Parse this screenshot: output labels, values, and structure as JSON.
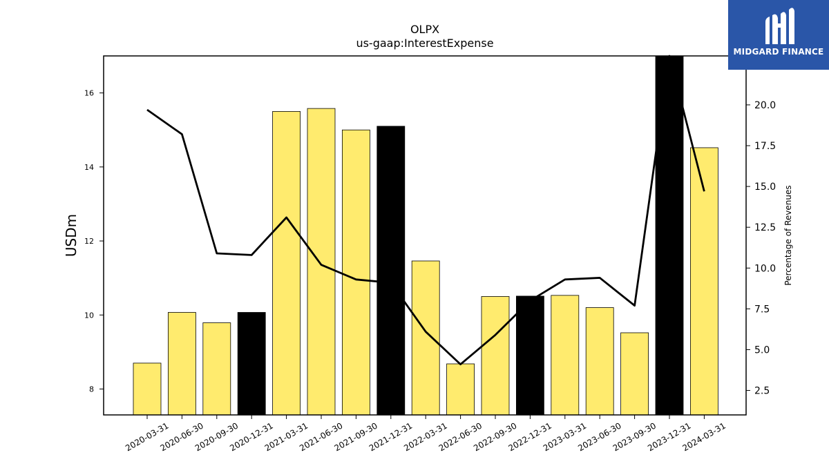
{
  "logo": {
    "text": "MIDGARD FINANCE"
  },
  "chart_data": {
    "type": "bar",
    "title": "OLPX",
    "subtitle": "us-gaap:InterestExpense",
    "ylabel": "USDm",
    "y2label": "Percentage of Revenues",
    "categories": [
      "2020-03-31",
      "2020-06-30",
      "2020-09-30",
      "2020-12-31",
      "2021-03-31",
      "2021-06-30",
      "2021-09-30",
      "2021-12-31",
      "2022-03-31",
      "2022-06-30",
      "2022-09-30",
      "2022-12-31",
      "2023-03-31",
      "2023-06-30",
      "2023-09-30",
      "2023-12-31",
      "2024-03-31"
    ],
    "values": [
      8.7,
      10.07,
      9.79,
      10.07,
      15.5,
      15.58,
      15.0,
      15.1,
      11.46,
      8.68,
      10.5,
      10.51,
      10.53,
      10.2,
      9.52,
      17.0,
      14.52
    ],
    "highlighted": [
      false,
      false,
      false,
      true,
      false,
      false,
      false,
      true,
      false,
      false,
      false,
      true,
      false,
      false,
      false,
      true,
      false
    ],
    "bar_color": "#ffeb6e",
    "highlight_color": "#000000",
    "line": {
      "values": [
        19.7,
        18.2,
        10.9,
        10.8,
        13.1,
        10.2,
        9.3,
        9.1,
        6.1,
        4.1,
        5.9,
        8.0,
        9.3,
        9.4,
        7.7,
        23.0,
        14.7
      ],
      "color": "#000000"
    },
    "ylim": [
      7.3,
      17.0
    ],
    "y2lim": [
      1.0,
      23.0
    ],
    "yticks": [
      8,
      10,
      12,
      14,
      16
    ],
    "y2ticks": [
      "2.5",
      "5.0",
      "7.5",
      "10.0",
      "12.5",
      "15.0",
      "17.5",
      "20.0"
    ]
  }
}
